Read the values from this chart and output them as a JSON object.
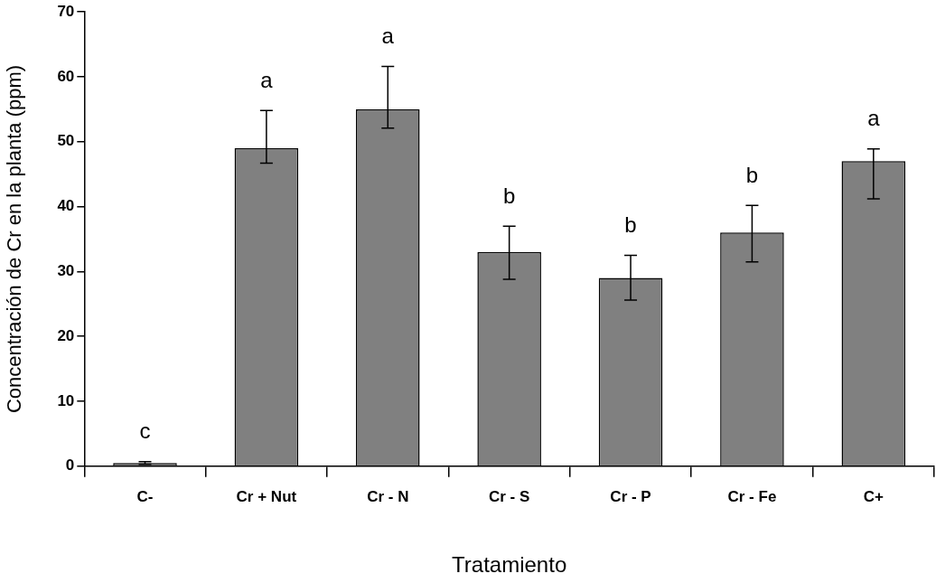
{
  "chart_data": {
    "type": "bar",
    "xlabel": "Tratamiento",
    "ylabel": "Concentración de Cr en la planta (ppm)",
    "categories": [
      "C-",
      "Cr + Nut",
      "Cr - N",
      "Cr - S",
      "Cr - P",
      "Cr - Fe",
      "C+"
    ],
    "values": [
      0.5,
      49,
      55,
      33,
      29,
      36,
      47
    ],
    "color": "#808080",
    "errors": [
      [
        0.3,
        0.7
      ],
      [
        46.7,
        54.8
      ],
      [
        52.1,
        61.6
      ],
      [
        28.8,
        37
      ],
      [
        25.6,
        32.5
      ],
      [
        31.5,
        40.2
      ],
      [
        41.2,
        48.9
      ]
    ],
    "ylim": [
      0,
      70
    ],
    "yticks": [
      0,
      10,
      20,
      30,
      40,
      50,
      60,
      70
    ],
    "grid": false,
    "legend": false,
    "annotations": [
      "c",
      "a",
      "a",
      "b",
      "b",
      "b",
      "a"
    ]
  }
}
